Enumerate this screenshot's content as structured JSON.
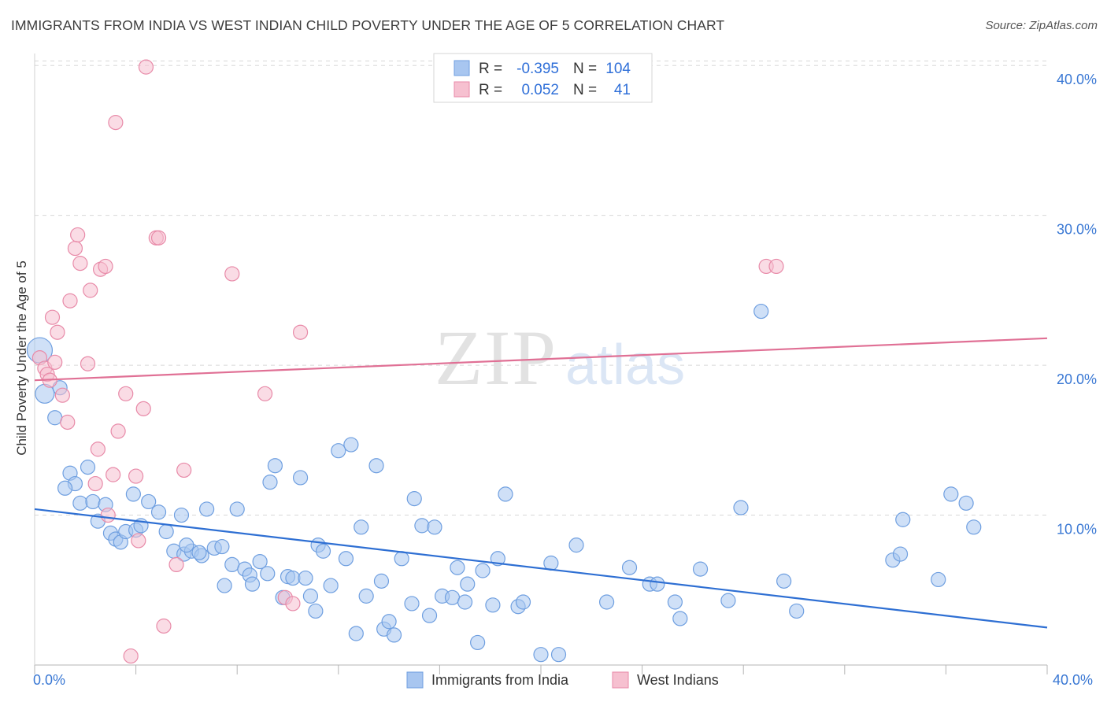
{
  "header": {
    "title": "IMMIGRANTS FROM INDIA VS WEST INDIAN CHILD POVERTY UNDER THE AGE OF 5 CORRELATION CHART",
    "source": "Source: ZipAtlas.com"
  },
  "watermark": {
    "zip": "ZIP",
    "atlas": "atlas"
  },
  "legend": {
    "r_label": "R =",
    "n_label": "N =",
    "rows": [
      {
        "r": "-0.395",
        "n": "104"
      },
      {
        "r": "0.052",
        "n": "41"
      }
    ]
  },
  "colors": {
    "blue_fill": "#a8c6f0",
    "blue_stroke": "#6f9fe0",
    "blue_line": "#2e6fd3",
    "pink_fill": "#f6c0d0",
    "pink_stroke": "#e88aa8",
    "pink_line": "#e07095",
    "tick_text": "#3a78d4",
    "grid": "#d8d8d8"
  },
  "chart_data": {
    "type": "scatter",
    "xlabel": "",
    "ylabel": "Child Poverty Under the Age of 5",
    "xlim": [
      0,
      40
    ],
    "ylim": [
      0,
      40.8
    ],
    "x_tick_labels": [
      "0.0%",
      "40.0%"
    ],
    "y_ticks": [
      10,
      20,
      30,
      40
    ],
    "y_tick_labels": [
      "10.0%",
      "20.0%",
      "30.0%",
      "40.0%"
    ],
    "grid": true,
    "legend_position": "top-center",
    "series": [
      {
        "name": "Immigrants from India",
        "color": "#a8c6f0",
        "trend": {
          "x": [
            0,
            40
          ],
          "y": [
            10.4,
            2.5
          ]
        },
        "points": [
          [
            0.2,
            21.0,
            3
          ],
          [
            0.4,
            18.1,
            2
          ],
          [
            1.0,
            18.5,
            1
          ],
          [
            0.8,
            16.5,
            1
          ],
          [
            1.4,
            12.8,
            1
          ],
          [
            1.6,
            12.1,
            1
          ],
          [
            2.1,
            13.2,
            1
          ],
          [
            1.2,
            11.8,
            1
          ],
          [
            1.8,
            10.8,
            1
          ],
          [
            2.3,
            10.9,
            1
          ],
          [
            2.8,
            10.7,
            1
          ],
          [
            2.5,
            9.6,
            1
          ],
          [
            3.0,
            8.8,
            1
          ],
          [
            3.2,
            8.4,
            1
          ],
          [
            3.4,
            8.2,
            1
          ],
          [
            3.6,
            8.9,
            1
          ],
          [
            4.0,
            9.0,
            1
          ],
          [
            3.9,
            11.4,
            1
          ],
          [
            4.2,
            9.3,
            1
          ],
          [
            4.5,
            10.9,
            1
          ],
          [
            4.9,
            10.2,
            1
          ],
          [
            5.2,
            8.9,
            1
          ],
          [
            5.5,
            7.6,
            1
          ],
          [
            5.8,
            10.0,
            1
          ],
          [
            5.9,
            7.4,
            1
          ],
          [
            6.2,
            7.6,
            1
          ],
          [
            6.0,
            8.0,
            1
          ],
          [
            6.6,
            7.3,
            1
          ],
          [
            6.5,
            7.5,
            1
          ],
          [
            6.8,
            10.4,
            1
          ],
          [
            7.1,
            7.8,
            1
          ],
          [
            7.4,
            7.9,
            1
          ],
          [
            7.5,
            5.3,
            1
          ],
          [
            7.8,
            6.7,
            1
          ],
          [
            8.0,
            10.4,
            1
          ],
          [
            8.3,
            6.4,
            1
          ],
          [
            8.5,
            6.0,
            1
          ],
          [
            8.6,
            5.4,
            1
          ],
          [
            8.9,
            6.9,
            1
          ],
          [
            9.2,
            6.1,
            1
          ],
          [
            9.3,
            12.2,
            1
          ],
          [
            9.5,
            13.3,
            1
          ],
          [
            9.8,
            4.5,
            1
          ],
          [
            10.0,
            5.9,
            1
          ],
          [
            10.2,
            5.8,
            1
          ],
          [
            10.5,
            12.5,
            1
          ],
          [
            10.7,
            5.8,
            1
          ],
          [
            10.9,
            4.6,
            1
          ],
          [
            11.1,
            3.6,
            1
          ],
          [
            11.2,
            8.0,
            1
          ],
          [
            11.4,
            7.6,
            1
          ],
          [
            11.7,
            5.3,
            1
          ],
          [
            12.0,
            14.3,
            1
          ],
          [
            12.3,
            7.1,
            1
          ],
          [
            12.5,
            14.7,
            1
          ],
          [
            12.7,
            2.1,
            1
          ],
          [
            12.9,
            9.2,
            1
          ],
          [
            13.1,
            4.6,
            1
          ],
          [
            13.5,
            13.3,
            1
          ],
          [
            13.7,
            5.6,
            1
          ],
          [
            13.8,
            2.4,
            1
          ],
          [
            14.0,
            2.9,
            1
          ],
          [
            14.2,
            2.0,
            1
          ],
          [
            14.5,
            7.1,
            1
          ],
          [
            14.9,
            4.1,
            1
          ],
          [
            15.0,
            11.1,
            1
          ],
          [
            15.3,
            9.3,
            1
          ],
          [
            15.6,
            3.3,
            1
          ],
          [
            15.8,
            9.2,
            1
          ],
          [
            16.1,
            4.6,
            1
          ],
          [
            16.5,
            4.5,
            1
          ],
          [
            16.7,
            6.5,
            1
          ],
          [
            17.0,
            4.2,
            1
          ],
          [
            17.1,
            5.4,
            1
          ],
          [
            17.5,
            1.5,
            1
          ],
          [
            17.7,
            6.3,
            1
          ],
          [
            18.1,
            4.0,
            1
          ],
          [
            18.3,
            7.1,
            1
          ],
          [
            18.6,
            11.4,
            1
          ],
          [
            19.1,
            3.9,
            1
          ],
          [
            19.3,
            4.2,
            1
          ],
          [
            20.0,
            0.7,
            1
          ],
          [
            20.4,
            6.8,
            1
          ],
          [
            20.7,
            0.7,
            1
          ],
          [
            21.4,
            8.0,
            1
          ],
          [
            22.6,
            4.2,
            1
          ],
          [
            23.5,
            6.5,
            1
          ],
          [
            24.3,
            5.4,
            1
          ],
          [
            24.6,
            5.4,
            1
          ],
          [
            25.3,
            4.2,
            1
          ],
          [
            25.5,
            3.1,
            1
          ],
          [
            26.3,
            6.4,
            1
          ],
          [
            27.4,
            4.3,
            1
          ],
          [
            27.9,
            10.5,
            1
          ],
          [
            28.7,
            23.6,
            1
          ],
          [
            29.6,
            5.6,
            1
          ],
          [
            30.1,
            3.6,
            1
          ],
          [
            33.9,
            7.0,
            1
          ],
          [
            34.2,
            7.4,
            1
          ],
          [
            34.3,
            9.7,
            1
          ],
          [
            35.7,
            5.7,
            1
          ],
          [
            36.2,
            11.4,
            1
          ],
          [
            36.8,
            10.8,
            1
          ],
          [
            37.1,
            9.2,
            1
          ]
        ]
      },
      {
        "name": "West Indians",
        "color": "#f6c0d0",
        "trend": {
          "x": [
            0,
            40
          ],
          "y": [
            19.0,
            21.8
          ]
        },
        "points": [
          [
            0.2,
            20.5,
            1
          ],
          [
            0.4,
            19.8,
            1
          ],
          [
            0.5,
            19.4,
            1
          ],
          [
            0.6,
            19.0,
            1
          ],
          [
            0.7,
            23.2,
            1
          ],
          [
            0.8,
            20.2,
            1
          ],
          [
            0.9,
            22.2,
            1
          ],
          [
            1.1,
            18.0,
            1
          ],
          [
            1.3,
            16.2,
            1
          ],
          [
            1.4,
            24.3,
            1
          ],
          [
            1.6,
            27.8,
            1
          ],
          [
            1.7,
            28.7,
            1
          ],
          [
            1.8,
            26.8,
            1
          ],
          [
            2.1,
            20.1,
            1
          ],
          [
            2.2,
            25.0,
            1
          ],
          [
            2.4,
            12.1,
            1
          ],
          [
            2.5,
            14.4,
            1
          ],
          [
            2.6,
            26.4,
            1
          ],
          [
            2.8,
            26.6,
            1
          ],
          [
            2.9,
            10.0,
            1
          ],
          [
            3.1,
            12.7,
            1
          ],
          [
            3.2,
            36.2,
            1
          ],
          [
            3.3,
            15.6,
            1
          ],
          [
            3.6,
            18.1,
            1
          ],
          [
            4.0,
            12.6,
            1
          ],
          [
            4.1,
            8.3,
            1
          ],
          [
            4.3,
            17.1,
            1
          ],
          [
            4.4,
            39.9,
            1
          ],
          [
            4.8,
            28.5,
            1
          ],
          [
            4.9,
            28.5,
            1
          ],
          [
            5.1,
            2.6,
            1
          ],
          [
            5.6,
            6.7,
            1
          ],
          [
            5.9,
            13.0,
            1
          ],
          [
            7.8,
            26.1,
            1
          ],
          [
            9.1,
            18.1,
            1
          ],
          [
            9.9,
            4.5,
            1
          ],
          [
            10.2,
            4.1,
            1
          ],
          [
            10.5,
            22.2,
            1
          ],
          [
            28.9,
            26.6,
            1
          ],
          [
            29.3,
            26.6,
            1
          ],
          [
            3.8,
            0.6,
            1
          ]
        ]
      }
    ]
  },
  "bottom_legend": [
    "Immigrants from India",
    "West Indians"
  ]
}
